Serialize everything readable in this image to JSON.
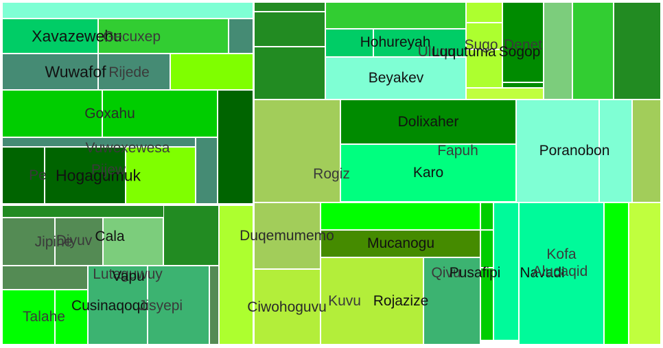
{
  "chart_data": {
    "type": "treemap",
    "cells": [
      {
        "name": "",
        "color": "#7fffd4"
      },
      {
        "name": "Xavazewebu",
        "color": "#00cd66",
        "label_color": "#111111"
      },
      {
        "name": "Gecuxep",
        "color": "#32cd32",
        "label_color": "#3a3a3a"
      },
      {
        "name": "",
        "color": "#458b74"
      },
      {
        "name": "Wuwafof",
        "color": "#458b74",
        "label_color": "#111111"
      },
      {
        "name": "Rijede",
        "color": "#458b74",
        "label_color": "#3a3a3a"
      },
      {
        "name": "",
        "color": "#7fff00"
      },
      {
        "name": "Goxahu",
        "color": "#00cd00",
        "label_color": "#2a2a2a"
      },
      {
        "name": "",
        "color": "#00cd00"
      },
      {
        "name": "",
        "color": "#006400"
      },
      {
        "name": "Vuwexewesa",
        "color": "#458b74",
        "label_color": "#3a3a3a"
      },
      {
        "name": "Pe",
        "color": "#006400",
        "label_color": "#3a3a3a"
      },
      {
        "name": "Hogagumuk",
        "color": "#006400",
        "label_color": "#111111"
      },
      {
        "name": "Pijew",
        "color": "#7fff00",
        "label_color": "#3a3a3a"
      },
      {
        "name": "",
        "color": "#458b74"
      },
      {
        "name": "",
        "color": "#228b22"
      },
      {
        "name": "Jipine",
        "color": "#548b54",
        "label_color": "#3a3a3a"
      },
      {
        "name": "Diyuv",
        "color": "#548b54",
        "label_color": "#3a3a3a"
      },
      {
        "name": "Cala",
        "color": "#7ccd7c",
        "label_color": "#111111"
      },
      {
        "name": "",
        "color": "#228b22"
      },
      {
        "name": "",
        "color": "#548b54"
      },
      {
        "name": "Lutaguwuy",
        "color": "#228b22",
        "label_color": "#3a3a3a"
      },
      {
        "name": "Vapu",
        "color": "#3cb371",
        "label_color": "#111111"
      },
      {
        "name": "Talahe",
        "color": "#00ff00",
        "label_color": "#3a3a3a"
      },
      {
        "name": "Cusinaqoqo",
        "color": "#00ff00",
        "label_color": "#111111"
      },
      {
        "name": "Jisyepi",
        "color": "#3cb371",
        "label_color": "#3a3a3a"
      },
      {
        "name": "",
        "color": "#548b54"
      },
      {
        "name": "Duqemumemo",
        "color": "#adff2f",
        "label_color": "#2a2a2a"
      },
      {
        "name": "",
        "color": "#228b22"
      },
      {
        "name": "",
        "color": "#228b22"
      },
      {
        "name": "",
        "color": "#228b22"
      },
      {
        "name": "",
        "color": "#32cd32"
      },
      {
        "name": "Hohureyah",
        "color": "#00cd66",
        "label_color": "#111111"
      },
      {
        "name": "",
        "color": "#00cd66"
      },
      {
        "name": "Beyakev",
        "color": "#7fffd4",
        "label_color": "#111111"
      },
      {
        "name": "",
        "color": "#adff2f"
      },
      {
        "name": "Sugo",
        "color": "#adff2f",
        "label_color": "#3a3a3a"
      },
      {
        "name": "Denet",
        "color": "#008b00",
        "label_color": "#3a3a3a"
      },
      {
        "name": "Uluqu",
        "color": "#adff2f",
        "label_color": "#3a3a3a"
      },
      {
        "name": "Luqutuma",
        "color": "#adff2f",
        "label_color": "#111111"
      },
      {
        "name": "Sogop",
        "color": "#008b00",
        "label_color": "#111111"
      },
      {
        "name": "",
        "color": "#c0ff3e"
      },
      {
        "name": "",
        "color": "#7ccd7c"
      },
      {
        "name": "",
        "color": "#32cd32"
      },
      {
        "name": "",
        "color": "#228b22"
      },
      {
        "name": "Rogiz",
        "color": "#a2cd5a",
        "label_color": "#3a3a3a"
      },
      {
        "name": "Dolixaher",
        "color": "#008b00",
        "label_color": "#111111"
      },
      {
        "name": "Fapuh",
        "color": "#00ff7f",
        "label_color": "#3a3a3a"
      },
      {
        "name": "Karo",
        "color": "#00ff7f",
        "label_color": "#111111"
      },
      {
        "name": "Poranobon",
        "color": "#7fffd4",
        "label_color": "#111111"
      },
      {
        "name": "",
        "color": "#7fffd4"
      },
      {
        "name": "",
        "color": "#a2cd5a"
      },
      {
        "name": "",
        "color": "#a2cd5a"
      },
      {
        "name": "Ciwohoguvu",
        "color": "#b3ee3a",
        "label_color": "#2a2a2a"
      },
      {
        "name": "",
        "color": "#00ff00"
      },
      {
        "name": "Mucanogu",
        "color": "#458b00",
        "label_color": "#111111"
      },
      {
        "name": "",
        "color": "#458b00"
      },
      {
        "name": "Kuvu",
        "color": "#b3ee3a",
        "label_color": "#3a3a3a"
      },
      {
        "name": "Rojazize",
        "color": "#b3ee3a",
        "label_color": "#111111"
      },
      {
        "name": "Qivu",
        "color": "#3cb371",
        "label_color": "#3a3a3a"
      },
      {
        "name": "Pusafipi",
        "color": "#3cb371",
        "label_color": "#111111"
      },
      {
        "name": "",
        "color": "#00cd00"
      },
      {
        "name": "",
        "color": "#00cd00"
      },
      {
        "name": "",
        "color": "#00cd00"
      },
      {
        "name": "Navadi",
        "color": "#00fa9a",
        "label_color": "#111111"
      },
      {
        "name": "Kofa",
        "color": "#00fa9a",
        "label_color": "#3a3a3a"
      },
      {
        "name": "Alucaqid",
        "color": "#00fa9a",
        "label_color": "#3a3a3a"
      },
      {
        "name": "",
        "color": "#00ff00"
      },
      {
        "name": "",
        "color": "#c0ff3e"
      }
    ]
  }
}
